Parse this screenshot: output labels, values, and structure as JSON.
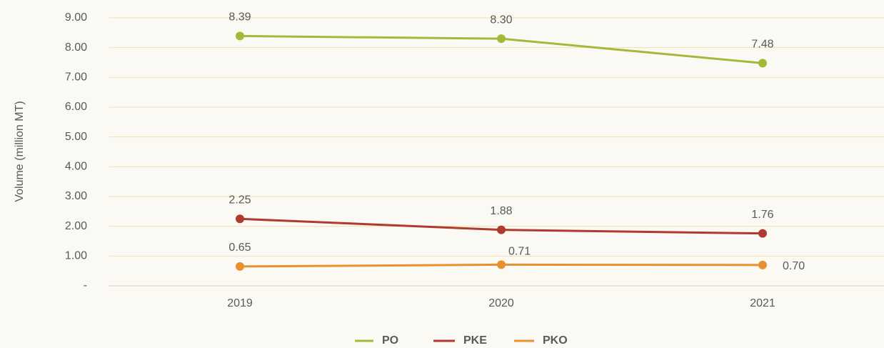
{
  "chart_data": {
    "type": "line",
    "y_label": "Volume (million MT)",
    "categories": [
      "2019",
      "2020",
      "2021"
    ],
    "series": [
      {
        "name": "PO",
        "color": "#a5b83a",
        "values": [
          8.39,
          8.3,
          7.48
        ],
        "value_labels": [
          "8.39",
          "8.30",
          "7.48"
        ]
      },
      {
        "name": "PKE",
        "color": "#b03a2e",
        "values": [
          2.25,
          1.88,
          1.76
        ],
        "value_labels": [
          "2.25",
          "1.88",
          "1.76"
        ]
      },
      {
        "name": "PKO",
        "color": "#e8902f",
        "values": [
          0.65,
          0.71,
          0.7
        ],
        "value_labels": [
          "0.65",
          "0.71",
          "0.70"
        ]
      }
    ],
    "ylim": [
      0,
      9
    ],
    "yticks": [
      {
        "value": 0,
        "label": "-"
      },
      {
        "value": 1,
        "label": "1.00"
      },
      {
        "value": 2,
        "label": "2.00"
      },
      {
        "value": 3,
        "label": "3.00"
      },
      {
        "value": 4,
        "label": "4.00"
      },
      {
        "value": 5,
        "label": "5.00"
      },
      {
        "value": 6,
        "label": "6.00"
      },
      {
        "value": 7,
        "label": "7.00"
      },
      {
        "value": 8,
        "label": "8.00"
      },
      {
        "value": 9,
        "label": "9.00"
      }
    ],
    "grid": true,
    "legend": "bottom"
  }
}
